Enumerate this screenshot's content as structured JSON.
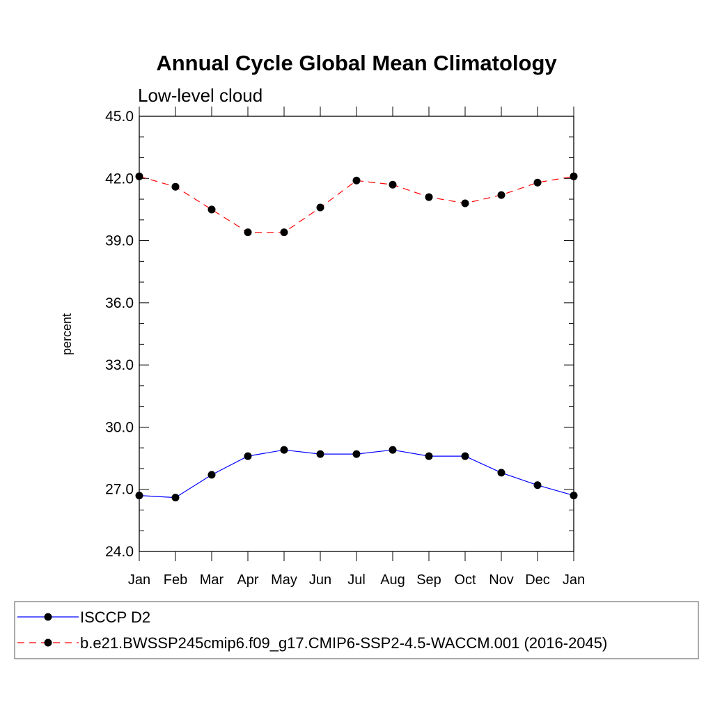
{
  "chart_data": {
    "type": "line",
    "title": "Annual Cycle Global Mean Climatology",
    "subtitle": "Low-level cloud",
    "xlabel": "",
    "ylabel": "percent",
    "ylim": [
      24.0,
      45.0
    ],
    "yticks": [
      "24.0",
      "27.0",
      "30.0",
      "33.0",
      "36.0",
      "39.0",
      "42.0",
      "45.0"
    ],
    "categories": [
      "Jan",
      "Feb",
      "Mar",
      "Apr",
      "May",
      "Jun",
      "Jul",
      "Aug",
      "Sep",
      "Oct",
      "Nov",
      "Dec",
      "Jan"
    ],
    "grid": false,
    "legend_position": "bottom",
    "series": [
      {
        "name": "ISCCP D2",
        "color": "#0000ff",
        "dash": "solid",
        "values": [
          26.7,
          26.6,
          27.7,
          28.6,
          28.9,
          28.7,
          28.7,
          28.9,
          28.6,
          28.6,
          27.8,
          27.2,
          26.7
        ]
      },
      {
        "name": "b.e21.BWSSP245cmip6.f09_g17.CMIP6-SSP2-4.5-WACCM.001 (2016-2045)",
        "color": "#ff0000",
        "dash": "dashed",
        "values": [
          42.1,
          41.6,
          40.5,
          39.4,
          39.4,
          40.6,
          41.9,
          41.7,
          41.1,
          40.8,
          41.2,
          41.8,
          42.1
        ]
      }
    ]
  }
}
